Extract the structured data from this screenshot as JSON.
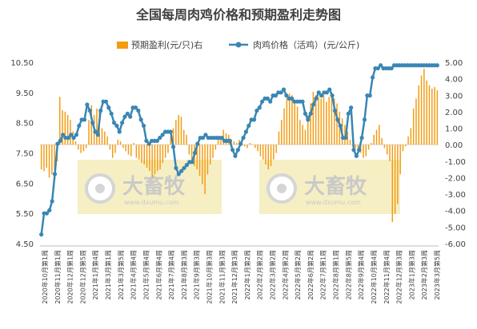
{
  "chart_data": {
    "type": "bar+line",
    "title": "全国每周肉鸡价格和预期盈利走势图",
    "legend": [
      "预期盈利(元/只)右",
      "肉鸡价格（活鸡）(元/公斤)"
    ],
    "legend_position": "top",
    "colors": {
      "bar": "#f39c12",
      "line": "#3a86b4",
      "watermark_bg": "#f6efc4"
    },
    "watermark": {
      "text": "大畜牧",
      "url": "www.dxumu.com",
      "icon": "dxumu-logo-icon"
    },
    "y_left": {
      "ylim": [
        4.5,
        10.5
      ],
      "ticks": [
        "4.50",
        "5.50",
        "6.50",
        "7.50",
        "8.50",
        "9.50",
        "10.50"
      ]
    },
    "y_right": {
      "ylim": [
        -6.0,
        5.0
      ],
      "ticks": [
        "5.00",
        "4.00",
        "3.00",
        "2.00",
        "1.00",
        "0.00",
        "-1.00",
        "-2.00",
        "-3.00",
        "-4.00",
        "-5.00",
        "-6.00"
      ]
    },
    "x_labels": [
      "2020年10月第1周",
      "2020年11月第1周",
      "2020年12月第1周",
      "2020年12月第5周",
      "2021年1月第4周",
      "2021年3月第1周",
      "2021年3月第5周",
      "2021年4月第4周",
      "2021年5月第4周",
      "2021年6月第4周",
      "2021年7月第4周",
      "2021年8月第3周",
      "2021年9月第3周",
      "2021年10月第3周",
      "2021年11月第3周",
      "2021年12月第3周",
      "2022年1月第2周",
      "2022年2月第2周",
      "2022年3月第2周",
      "2022年4月第2周",
      "2022年5月第2周",
      "2022年6月第2周",
      "2022年7月第1周",
      "2022年8月第1周",
      "2022年8月第5周",
      "2022年9月第4周",
      "2022年10月第4周",
      "2022年11月第4周",
      "2022年12月第3周",
      "2023年1月第3周",
      "2023年2月第3周",
      "2023年3月第5周"
    ],
    "series": [
      {
        "name": "预期盈利(元/只)右",
        "type": "bar",
        "axis": "right",
        "values": [
          -1.5,
          -1.6,
          -1.4,
          -2.0,
          -1.8,
          -1.5,
          -1.0,
          2.9,
          2.1,
          2.0,
          1.8,
          1.5,
          0.8,
          0.2,
          -0.3,
          -0.5,
          -0.4,
          -0.2,
          1.5,
          2.4,
          1.8,
          2.2,
          2.0,
          1.0,
          0.8,
          0.5,
          -0.3,
          -0.8,
          -0.5,
          0.3,
          0.2,
          -0.2,
          -0.4,
          -0.6,
          -0.7,
          0.1,
          -0.8,
          -0.9,
          -1.1,
          -1.2,
          -1.4,
          -1.6,
          -2.0,
          -1.8,
          -1.6,
          -1.5,
          -1.1,
          -0.8,
          -0.5,
          0.5,
          1.0,
          1.5,
          1.8,
          1.7,
          0.9,
          0.6,
          -0.6,
          -1.0,
          -1.3,
          -1.5,
          -1.9,
          -2.4,
          -3.0,
          -1.8,
          -1.2,
          -0.8,
          -0.3,
          0.4,
          0.5,
          0.9,
          0.7,
          0.6,
          0.3,
          0.2,
          0.1,
          0.3,
          0.1,
          -0.1,
          -0.2,
          0.1,
          0.0,
          -0.2,
          -0.4,
          -0.7,
          -0.9,
          -1.2,
          -1.5,
          -1.3,
          -0.9,
          -0.5,
          0.8,
          1.5,
          2.2,
          2.8,
          3.1,
          3.0,
          2.7,
          2.3,
          1.5,
          1.2,
          0.9,
          1.8,
          2.5,
          3.2,
          3.0,
          2.9,
          2.8,
          3.0,
          2.6,
          2.9,
          3.2,
          2.8,
          2.5,
          2.0,
          1.6,
          1.2,
          0.8,
          0.3,
          -0.1,
          -0.2,
          -0.3,
          -0.5,
          -0.8,
          -0.7,
          -0.3,
          0.1,
          0.6,
          0.9,
          1.2,
          0.4,
          -0.2,
          -0.6,
          -1.0,
          -4.7,
          -4.2,
          -3.6,
          -1.8,
          -0.4,
          -0.1,
          0.5,
          1.0,
          2.2,
          2.8,
          3.6,
          4.2,
          4.6,
          3.9,
          3.6,
          3.4,
          3.5,
          3.3
        ]
      },
      {
        "name": "肉鸡价格（活鸡）(元/公斤)",
        "type": "line",
        "axis": "left",
        "values": [
          4.8,
          5.5,
          5.5,
          5.6,
          5.9,
          6.8,
          7.8,
          7.9,
          8.1,
          8.0,
          8.0,
          8.1,
          8.0,
          8.1,
          8.4,
          8.6,
          8.6,
          9.1,
          8.9,
          8.5,
          8.2,
          8.1,
          8.9,
          9.2,
          9.2,
          9.0,
          8.8,
          8.5,
          8.4,
          8.2,
          8.5,
          8.7,
          8.8,
          8.7,
          9.0,
          9.0,
          8.9,
          8.6,
          8.4,
          7.9,
          7.8,
          7.9,
          7.9,
          7.9,
          8.0,
          8.1,
          8.2,
          8.2,
          8.2,
          7.7,
          7.0,
          6.8,
          6.9,
          7.0,
          7.1,
          7.2,
          7.2,
          7.5,
          7.8,
          8.0,
          8.0,
          8.1,
          8.0,
          8.0,
          8.0,
          8.0,
          8.0,
          8.0,
          7.9,
          7.9,
          7.9,
          7.6,
          7.4,
          7.6,
          7.8,
          8.0,
          8.2,
          8.4,
          8.6,
          8.6,
          8.9,
          9.0,
          9.2,
          9.3,
          9.3,
          9.2,
          9.4,
          9.4,
          9.5,
          9.5,
          9.6,
          9.4,
          9.3,
          9.3,
          9.2,
          9.2,
          9.2,
          9.2,
          8.8,
          8.6,
          8.8,
          9.1,
          9.3,
          9.5,
          9.4,
          9.5,
          9.5,
          9.6,
          9.4,
          8.9,
          8.6,
          8.4,
          8.0,
          8.0,
          8.8,
          9.0,
          7.6,
          7.4,
          7.6,
          8.0,
          8.6,
          9.4,
          9.4,
          10.0,
          10.3,
          10.3,
          10.4,
          10.3,
          10.3,
          10.3,
          10.3,
          10.4,
          10.4,
          10.4,
          10.4,
          10.4,
          10.4,
          10.4,
          10.4,
          10.4,
          10.4,
          10.4,
          10.4,
          10.4,
          10.4,
          10.4,
          10.4,
          10.4
        ]
      }
    ]
  }
}
